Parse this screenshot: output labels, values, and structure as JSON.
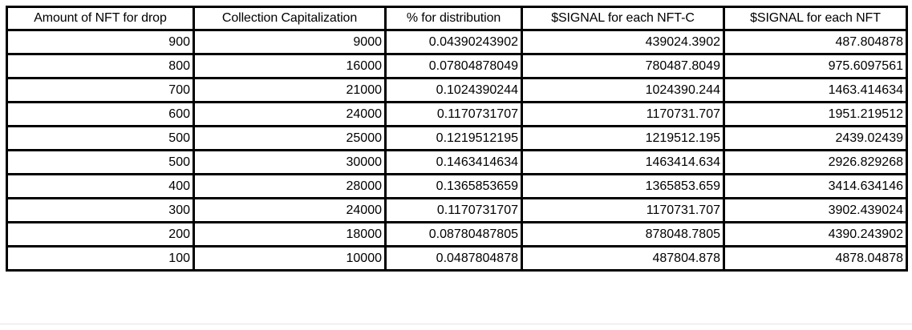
{
  "table": {
    "headers": [
      "Amount of NFT for drop",
      "Collection Capitalization",
      "% for distribution",
      "$SIGNAL for each NFT-C",
      "$SIGNAL for each NFT"
    ],
    "rows": [
      [
        "900",
        "9000",
        "0.04390243902",
        "439024.3902",
        "487.804878"
      ],
      [
        "800",
        "16000",
        "0.07804878049",
        "780487.8049",
        "975.6097561"
      ],
      [
        "700",
        "21000",
        "0.1024390244",
        "1024390.244",
        "1463.414634"
      ],
      [
        "600",
        "24000",
        "0.1170731707",
        "1170731.707",
        "1951.219512"
      ],
      [
        "500",
        "25000",
        "0.1219512195",
        "1219512.195",
        "2439.02439"
      ],
      [
        "500",
        "30000",
        "0.1463414634",
        "1463414.634",
        "2926.829268"
      ],
      [
        "400",
        "28000",
        "0.1365853659",
        "1365853.659",
        "3414.634146"
      ],
      [
        "300",
        "24000",
        "0.1170731707",
        "1170731.707",
        "3902.439024"
      ],
      [
        "200",
        "18000",
        "0.08780487805",
        "878048.7805",
        "4390.243902"
      ],
      [
        "100",
        "10000",
        "0.0487804878",
        "487804.878",
        "4878.04878"
      ]
    ]
  }
}
